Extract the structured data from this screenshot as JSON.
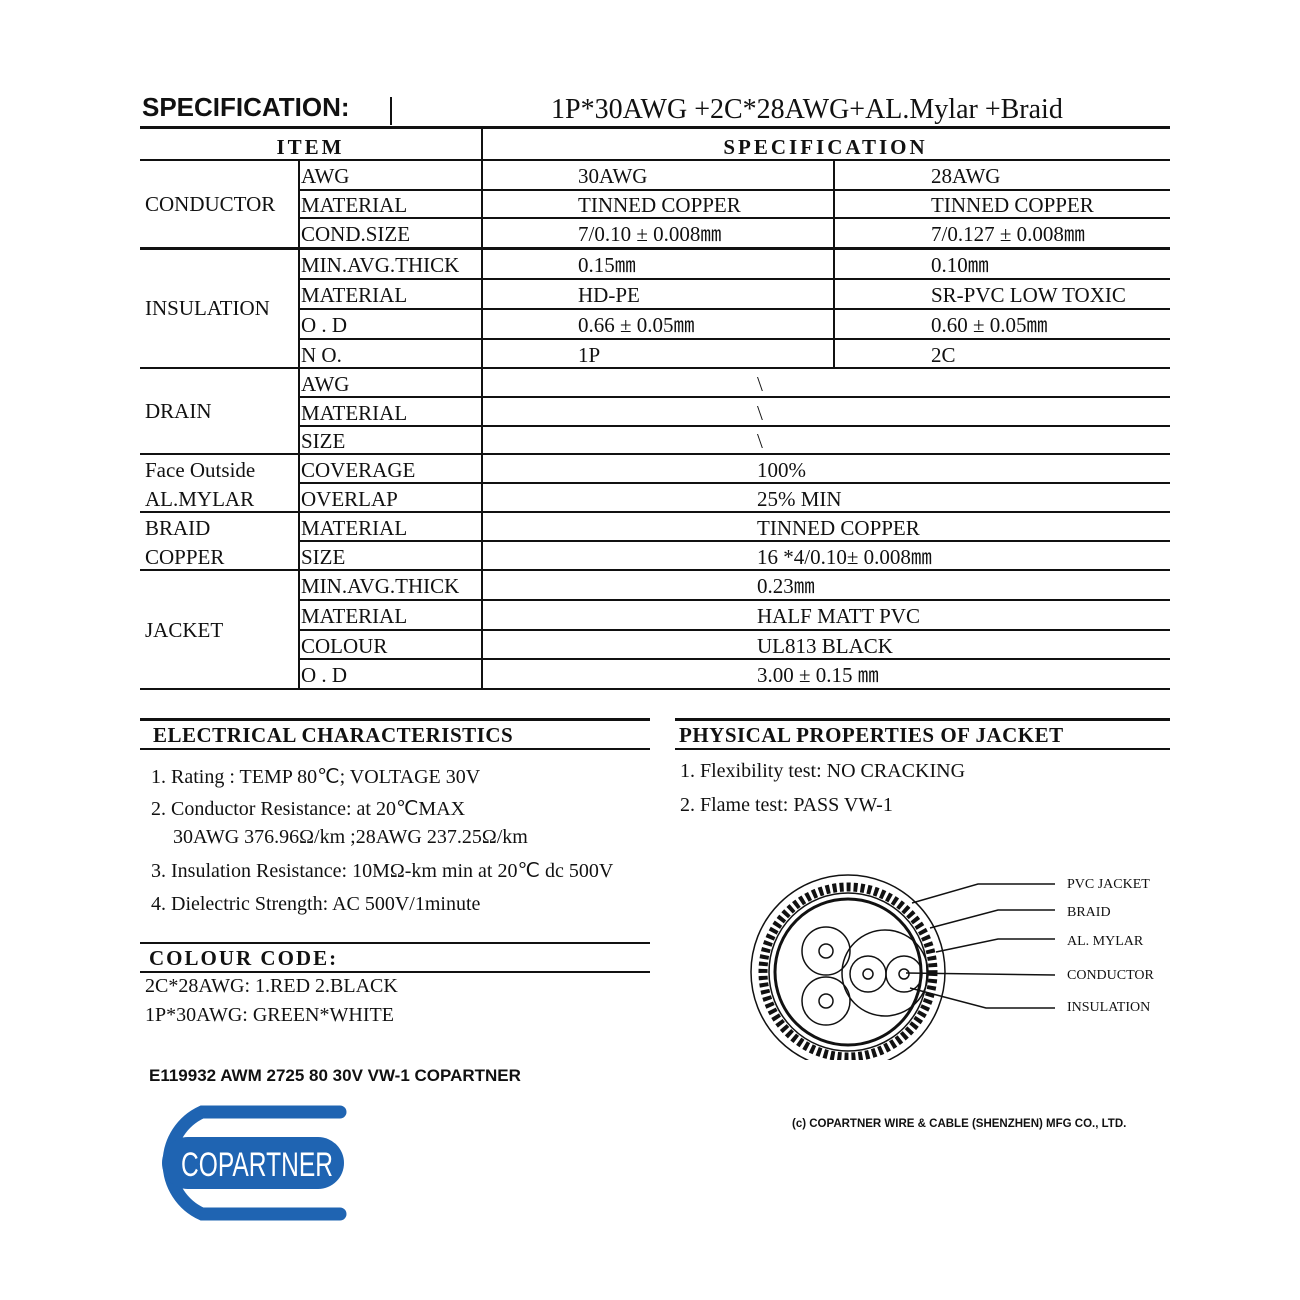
{
  "title": {
    "label": "SPECIFICATION:",
    "product": "1P*30AWG +2C*28AWG+AL.Mylar +Braid"
  },
  "table": {
    "headers": {
      "item": "ITEM",
      "spec": "SPECIFICATION"
    },
    "groups": [
      {
        "label": [
          "CONDUCTOR"
        ],
        "rows": [
          {
            "item": "AWG",
            "values": [
              "30AWG",
              "28AWG"
            ]
          },
          {
            "item": "MATERIAL",
            "values": [
              "TINNED  COPPER",
              "TINNED  COPPER"
            ]
          },
          {
            "item": "COND.SIZE",
            "values": [
              "7/0.10 ± 0.008㎜",
              "7/0.127 ± 0.008㎜"
            ]
          }
        ]
      },
      {
        "label": [
          "INSULATION"
        ],
        "rows": [
          {
            "item": "MIN.AVG.THICK",
            "values": [
              "0.15㎜",
              "0.10㎜"
            ]
          },
          {
            "item": "MATERIAL",
            "values": [
              "HD-PE",
              "SR-PVC  LOW TOXIC"
            ]
          },
          {
            "item": "O . D",
            "values": [
              "0.66 ± 0.05㎜",
              "0.60 ± 0.05㎜"
            ]
          },
          {
            "item": "N O.",
            "values": [
              "1P",
              "2C"
            ]
          }
        ]
      },
      {
        "label": [
          "DRAIN"
        ],
        "rows": [
          {
            "item": "AWG",
            "value": "\\"
          },
          {
            "item": "MATERIAL",
            "value": "\\"
          },
          {
            "item": "SIZE",
            "value": "\\"
          }
        ]
      },
      {
        "label": [
          "Face Outside",
          "AL.MYLAR"
        ],
        "rows": [
          {
            "item": "COVERAGE",
            "value": "100%"
          },
          {
            "item": "OVERLAP",
            "value": "25% MIN"
          }
        ]
      },
      {
        "label": [
          "BRAID",
          "COPPER"
        ],
        "rows": [
          {
            "item": "MATERIAL",
            "value": "TINNED COPPER"
          },
          {
            "item": "SIZE",
            "value": "16 *4/0.10± 0.008㎜"
          }
        ]
      },
      {
        "label": [
          "JACKET"
        ],
        "rows": [
          {
            "item": "MIN.AVG.THICK",
            "value": "0.23㎜"
          },
          {
            "item": "MATERIAL",
            "value": "HALF MATT PVC"
          },
          {
            "item": "COLOUR",
            "value": "UL813  BLACK"
          },
          {
            "item": "O . D",
            "value": "3.00 ± 0.15 ㎜"
          }
        ]
      }
    ]
  },
  "electrical": {
    "heading": "ELECTRICAL  CHARACTERISTICS",
    "items": [
      "1. Rating : TEMP  80℃;  VOLTAGE  30V",
      "2. Conductor Resistance:  at 20℃MAX",
      "30AWG 376.96Ω/km ;28AWG 237.25Ω/km",
      "3. Insulation Resistance: 10MΩ-km min at 20℃ dc 500V",
      "4. Dielectric Strength:  AC 500V/1minute"
    ]
  },
  "physical": {
    "heading": "PHYSICAL PROPERTIES OF JACKET",
    "items": [
      "1. Flexibility test: NO CRACKING",
      "2. Flame test: PASS  VW-1"
    ]
  },
  "colour_code": {
    "heading": "COLOUR CODE:",
    "items": [
      "2C*28AWG: 1.RED    2.BLACK",
      "1P*30AWG: GREEN*WHITE"
    ]
  },
  "marking": "E119932 AWM 2725 80  30V VW-1 COPARTNER",
  "diagram": {
    "labels": [
      "PVC JACKET",
      "BRAID",
      "AL. MYLAR",
      "CONDUCTOR",
      "INSULATION"
    ]
  },
  "logo": {
    "text": "COPARTNER",
    "color": "#1f64b2"
  },
  "copyright": "(c) COPARTNER WIRE & CABLE (SHENZHEN) MFG CO., LTD."
}
